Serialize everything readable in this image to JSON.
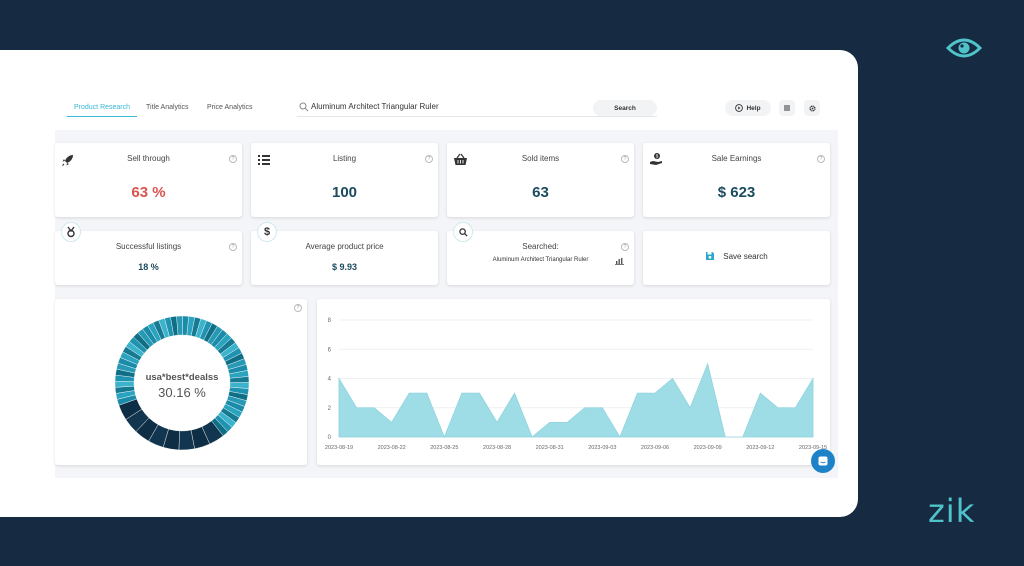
{
  "brand": {
    "name": "zik",
    "accent": "#4fc3c9"
  },
  "nav": {
    "tabs": [
      {
        "label": "Product Research",
        "active": true
      },
      {
        "label": "Title Analytics",
        "active": false
      },
      {
        "label": "Price Analytics",
        "active": false
      }
    ]
  },
  "search": {
    "value": "Aluminum Architect Triangular Ruler",
    "button": "Search"
  },
  "toolbar": {
    "help": "Help"
  },
  "stats": {
    "sell_through": {
      "label": "Sell through",
      "value": "63 %",
      "icon": "rocket-icon"
    },
    "listing": {
      "label": "Listing",
      "value": "100",
      "icon": "list-icon"
    },
    "sold_items": {
      "label": "Sold items",
      "value": "63",
      "icon": "basket-icon"
    },
    "sale_earnings": {
      "label": "Sale Earnings",
      "value": "$ 623",
      "icon": "hand-coin-icon"
    },
    "successful_listings": {
      "label": "Successful listings",
      "value": "18 %",
      "icon": "medal-icon"
    },
    "average_price": {
      "label": "Average product price",
      "value": "$ 9.93",
      "icon": "dollar-icon"
    },
    "searched": {
      "label": "Searched:",
      "value": "Aluminum Architect Triangular Ruler",
      "icon": "search-icon"
    },
    "save_search": {
      "label": "Save search",
      "icon": "floppy-icon"
    }
  },
  "donut": {
    "seller": "usa*best*dealss",
    "share_text": "30.16 %",
    "share": 0.3016
  },
  "chart_data": {
    "type": "area",
    "color": "#9fdde6",
    "ylim": [
      0,
      8
    ],
    "yticks": [
      0,
      2,
      4,
      6,
      8
    ],
    "xtick_labels": [
      "2023-08-19",
      "2023-08-22",
      "2023-08-25",
      "2023-08-28",
      "2023-08-31",
      "2023-09-03",
      "2023-09-06",
      "2023-09-09",
      "2023-09-12",
      "2023-09-15"
    ],
    "x": [
      "2023-08-19",
      "2023-08-20",
      "2023-08-21",
      "2023-08-22",
      "2023-08-23",
      "2023-08-24",
      "2023-08-25",
      "2023-08-26",
      "2023-08-27",
      "2023-08-28",
      "2023-08-29",
      "2023-08-30",
      "2023-08-31",
      "2023-09-01",
      "2023-09-02",
      "2023-09-03",
      "2023-09-04",
      "2023-09-05",
      "2023-09-06",
      "2023-09-07",
      "2023-09-08",
      "2023-09-09",
      "2023-09-10",
      "2023-09-11",
      "2023-09-12",
      "2023-09-13",
      "2023-09-14",
      "2023-09-15"
    ],
    "values": [
      4,
      2,
      2,
      1,
      3,
      3,
      0,
      3,
      3,
      1,
      3,
      0,
      1,
      1,
      2,
      2,
      0,
      3,
      3,
      4,
      2,
      5,
      0,
      0,
      3,
      2,
      2,
      4
    ]
  }
}
